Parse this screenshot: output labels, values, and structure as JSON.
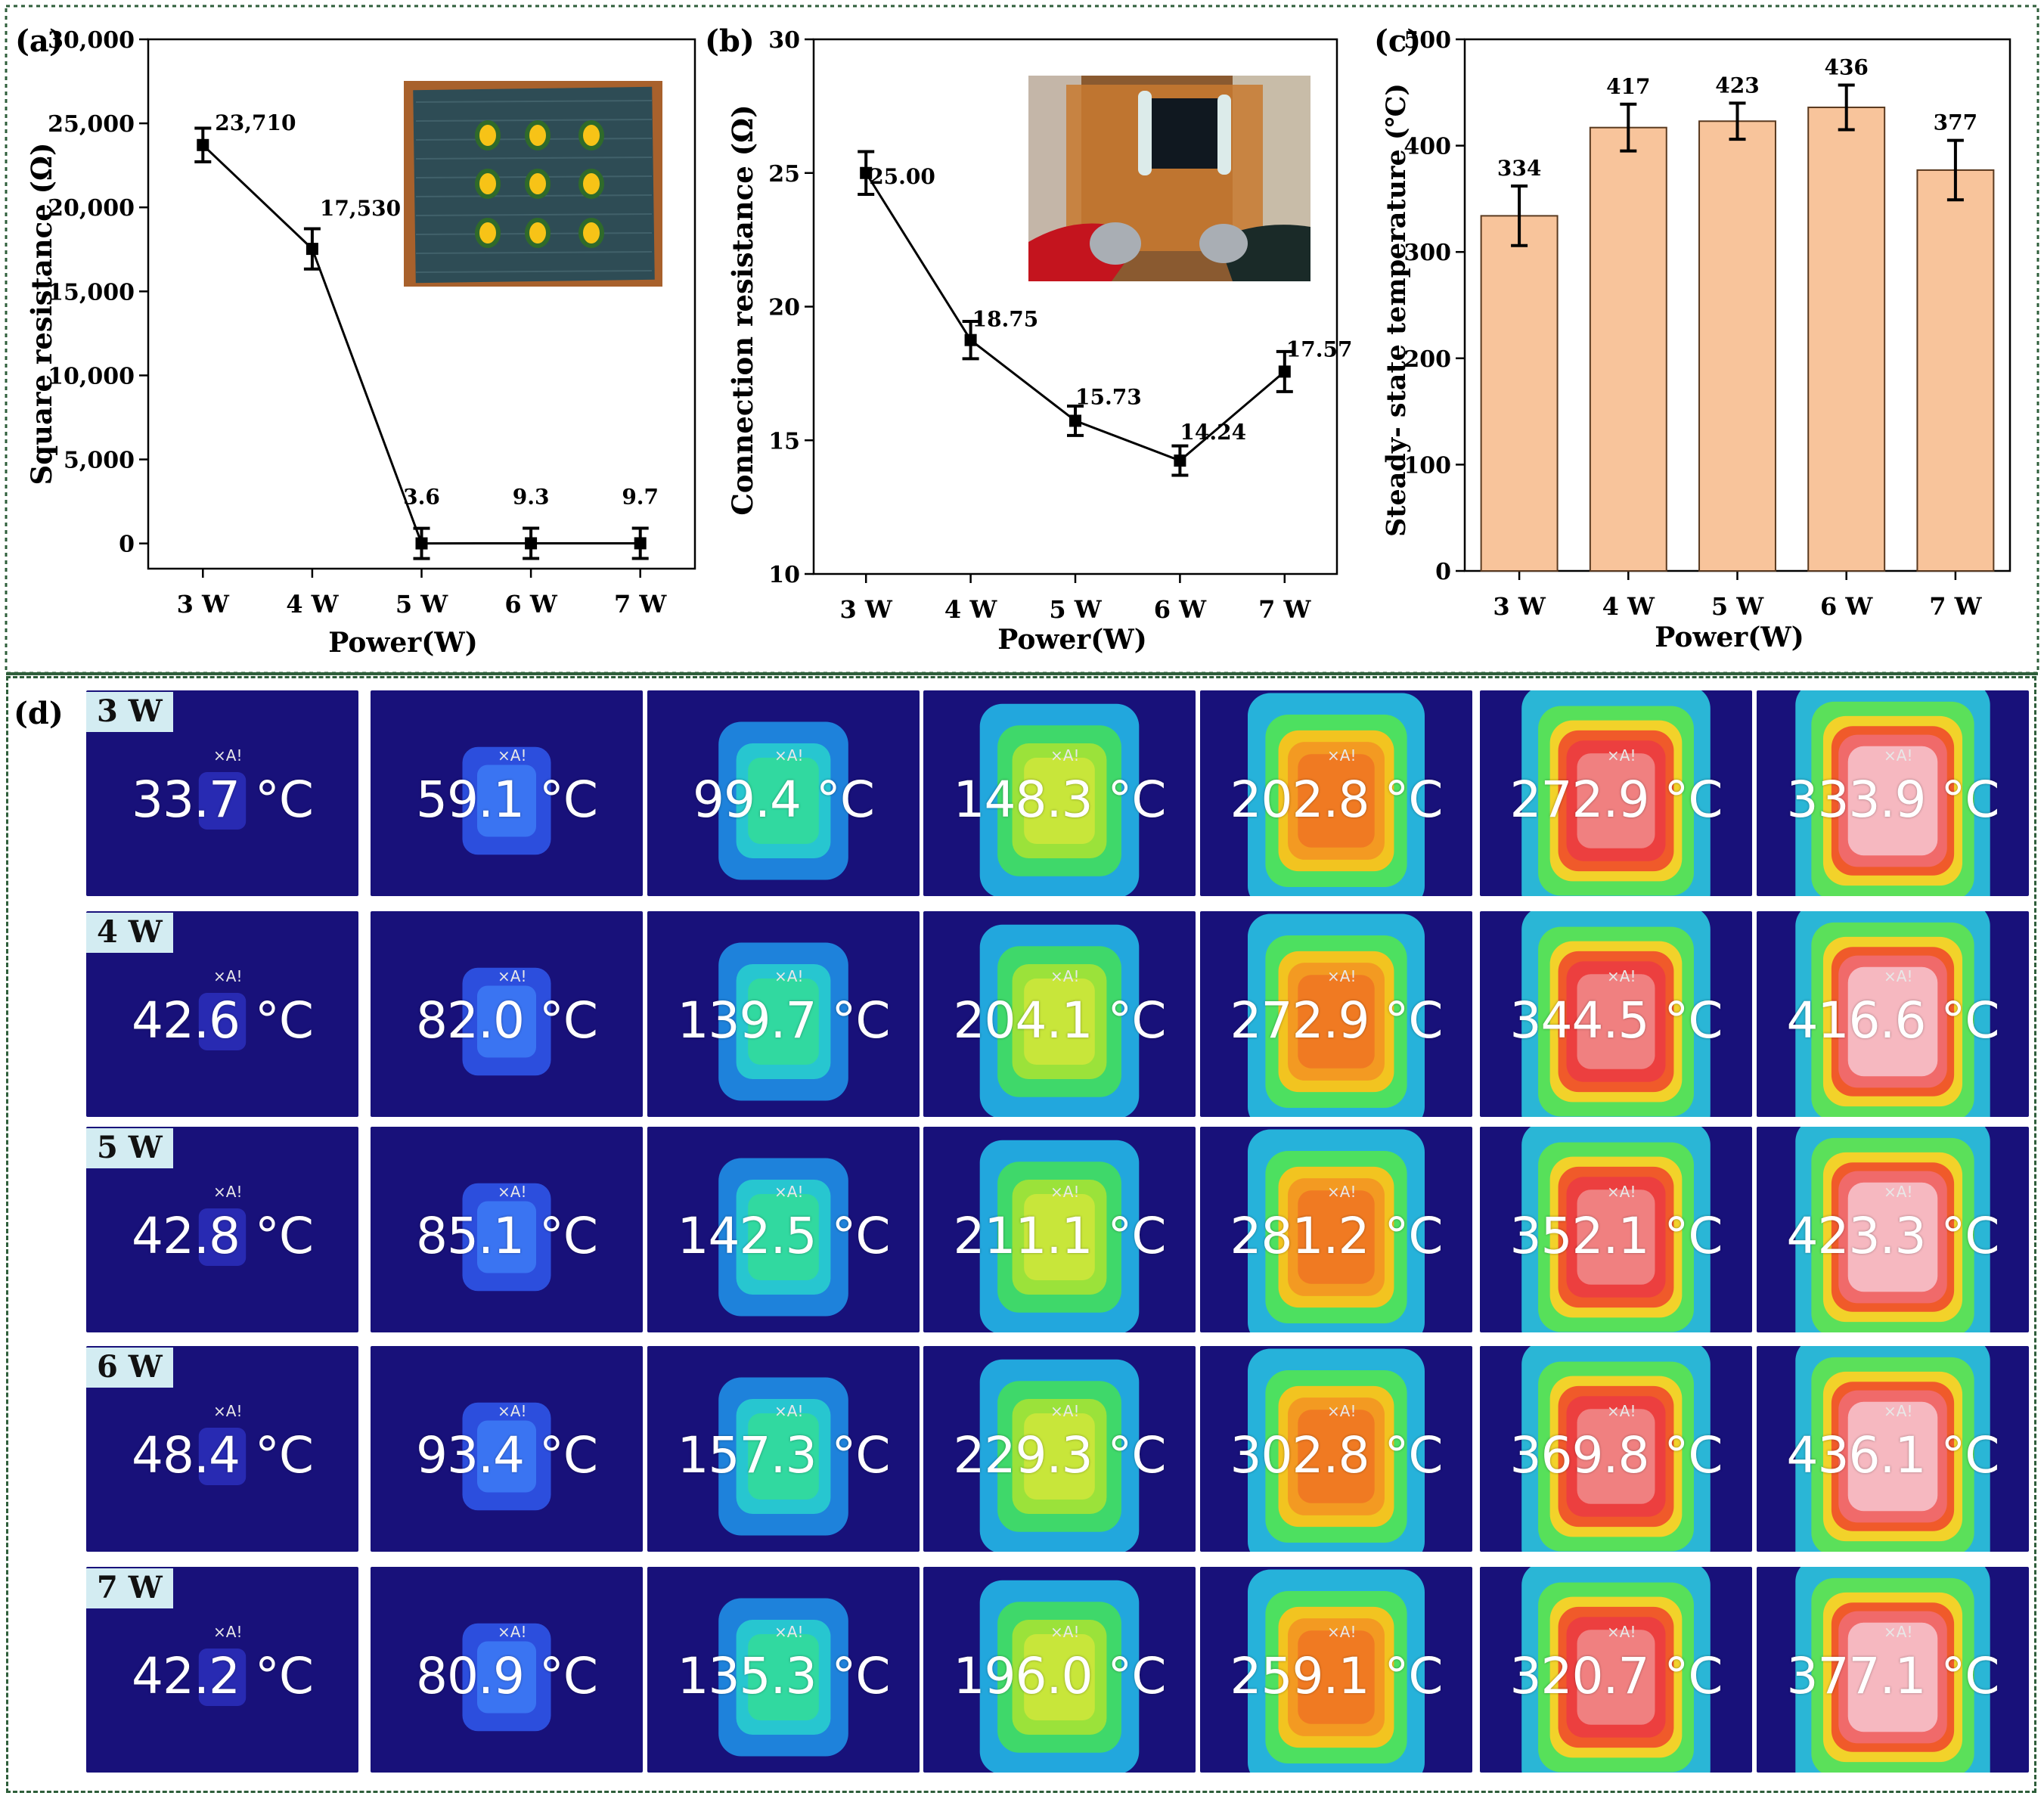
{
  "colors": {
    "frame_border": "#2e5e3a",
    "bar_fill": "#f8c49b",
    "bar_stroke": "#5a3a20",
    "line_color": "#000000",
    "row_label_bg": "#d3ecf2",
    "thermal_background": "#18117a"
  },
  "panels": {
    "a": {
      "label": "(a)"
    },
    "b": {
      "label": "(b)"
    },
    "c": {
      "label": "(c)"
    },
    "d": {
      "label": "(d)"
    }
  },
  "chart_data": [
    {
      "id": "a",
      "type": "line",
      "categories": [
        "3 W",
        "4 W",
        "5 W",
        "6 W",
        "7 W"
      ],
      "values": [
        23710,
        17530,
        3.6,
        9.3,
        9.7
      ],
      "value_labels": [
        "23,710",
        "17,530",
        "3.6",
        "9.3",
        "9.7"
      ],
      "errors": [
        1000,
        1200,
        900,
        900,
        900
      ],
      "xlabel": "Power(W)",
      "ylabel": "Square resistance  (Ω)",
      "ylim": [
        -1500,
        30000
      ],
      "yticks": [
        0,
        5000,
        10000,
        15000,
        20000,
        25000,
        30000
      ],
      "ytick_labels": [
        "0",
        "5,000",
        "10,000",
        "15,000",
        "20,000",
        "25,000",
        "30,000"
      ],
      "inset": "photo of dark textile sample with a 3×3 grid of yellow dots on a brown background"
    },
    {
      "id": "b",
      "type": "line",
      "categories": [
        "3 W",
        "4 W",
        "5 W",
        "6 W",
        "7 W"
      ],
      "values": [
        25.0,
        18.75,
        15.73,
        14.24,
        17.57
      ],
      "value_labels": [
        "25.00",
        "18.75",
        "15.73",
        "14.24",
        "17.57"
      ],
      "errors": [
        0.8,
        0.7,
        0.55,
        0.55,
        0.75
      ],
      "xlabel": "Power(W)",
      "ylabel": "Connection resistance  (Ω)",
      "ylim": [
        10,
        30
      ],
      "yticks": [
        10,
        15,
        20,
        25,
        30
      ],
      "ytick_labels": [
        "10",
        "15",
        "20",
        "25",
        "30"
      ],
      "inset": "photo of black sample on amber tape with red and black probe clips"
    },
    {
      "id": "c",
      "type": "bar",
      "categories": [
        "3 W",
        "4 W",
        "5 W",
        "6 W",
        "7 W"
      ],
      "values": [
        334,
        417,
        423,
        436,
        377
      ],
      "value_labels": [
        "334",
        "417",
        "423",
        "436",
        "377"
      ],
      "errors": [
        28,
        22,
        17,
        21,
        28
      ],
      "xlabel": "Power(W)",
      "ylabel": "Steady- state temperature (℃)",
      "ylim": [
        0,
        500
      ],
      "yticks": [
        0,
        100,
        200,
        300,
        400,
        500
      ],
      "ytick_labels": [
        "0",
        "100",
        "200",
        "300",
        "400",
        "500"
      ]
    }
  ],
  "thermal_grid": {
    "rows": [
      {
        "label": "3 W",
        "temps": [
          "33.7 °C",
          "59.1 °C",
          "99.4 °C",
          "148.3 °C",
          "202.8 °C",
          "272.9 °C",
          "333.9 °C"
        ]
      },
      {
        "label": "4  W",
        "temps": [
          "42.6 °C",
          "82.0 °C",
          "139.7 °C",
          "204.1 °C",
          "272.9 °C",
          "344.5 °C",
          "416.6 °C"
        ]
      },
      {
        "label": "5 W",
        "temps": [
          "42.8 °C",
          "85.1 °C",
          "142.5 °C",
          "211.1 °C",
          "281.2 °C",
          "352.1 °C",
          "423.3 °C"
        ]
      },
      {
        "label": "6 W",
        "temps": [
          "48.4 °C",
          "93.4 °C",
          "157.3 °C",
          "229.3 °C",
          "302.8 °C",
          "369.8 °C",
          "436.1 °C"
        ]
      },
      {
        "label": "7 W",
        "temps": [
          "42.2 °C",
          "80.9 °C",
          "135.3 °C",
          "196.0 °C",
          "259.1 °C",
          "320.7 °C",
          "377.1 °C"
        ]
      }
    ],
    "marker_label": "A!"
  }
}
